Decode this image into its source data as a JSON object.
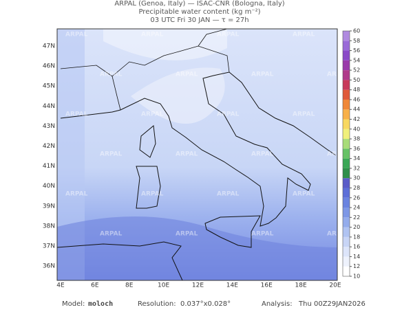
{
  "header": {
    "lines": [
      "ARPAL (Genoa, Italy)  —  ISAC-CNR (Bologna, Italy)",
      "Precipitable water content (kg m⁻²)",
      "03 UTC Fri 30 JAN  —  τ = 27h"
    ]
  },
  "map": {
    "watermark": "ARPAL",
    "lon_labels": [
      "4E",
      "6E",
      "8E",
      "10E",
      "12E",
      "14E",
      "16E",
      "18E",
      "20E"
    ],
    "lat_labels": [
      "47N",
      "46N",
      "45N",
      "44N",
      "43N",
      "42N",
      "41N",
      "40N",
      "39N",
      "38N",
      "37N",
      "36N"
    ]
  },
  "colorbar": {
    "ticks": [
      10,
      12,
      14,
      16,
      18,
      20,
      22,
      24,
      26,
      28,
      30,
      32,
      34,
      36,
      38,
      40,
      42,
      44,
      46,
      48,
      50,
      52,
      54,
      56,
      58,
      60
    ],
    "colors": [
      "#ffffff",
      "#eef2fc",
      "#dde5fa",
      "#c8d5f6",
      "#b0c3f2",
      "#94acec",
      "#7d97e6",
      "#6a83e0",
      "#5d6fd8",
      "#5a5cc8",
      "#2f8f4a",
      "#3aa856",
      "#66c266",
      "#a8dc78",
      "#f0f07a",
      "#f8d860",
      "#f8b048",
      "#f08838",
      "#e05a3a",
      "#c83a5a",
      "#b03a8a",
      "#9a3aaa",
      "#8a4ac8",
      "#9a6ad8",
      "#b08ae0"
    ]
  },
  "footer": {
    "model_label": "Model:",
    "model": "moloch",
    "resolution_label": "Resolution:",
    "resolution": "0.037°x0.028°",
    "analysis_label": "Analysis:",
    "analysis": "Thu 00Z29JAN2026"
  }
}
